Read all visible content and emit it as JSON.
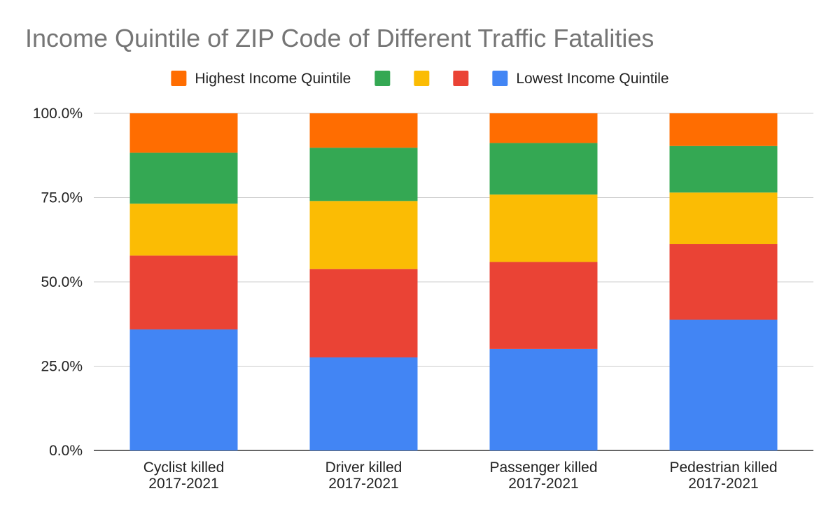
{
  "chart_data": {
    "type": "bar",
    "stacked": true,
    "title": "Income Quintile of ZIP Code of Different Traffic Fatalities",
    "xlabel": "",
    "ylabel": "",
    "ylim": [
      0,
      100
    ],
    "y_tick_labels": [
      "0.0%",
      "25.0%",
      "50.0%",
      "75.0%",
      "100.0%"
    ],
    "y_ticks": [
      0,
      25,
      50,
      75,
      100
    ],
    "grid": true,
    "legend_position": "top",
    "categories": [
      [
        "Cyclist killed",
        "2017-2021"
      ],
      [
        "Driver killed",
        "2017-2021"
      ],
      [
        "Passenger killed",
        "2017-2021"
      ],
      [
        "Pedestrian killed",
        "2017-2021"
      ]
    ],
    "series": [
      {
        "name": "Lowest Income Quintile",
        "color": "#4285f4",
        "values": [
          35.9,
          27.6,
          30.1,
          38.8
        ]
      },
      {
        "color": "#ea4335",
        "values": [
          21.9,
          26.2,
          25.8,
          22.4
        ]
      },
      {
        "color": "#fbbc04",
        "values": [
          15.4,
          20.2,
          20.0,
          15.3
        ]
      },
      {
        "color": "#34a853",
        "values": [
          15.1,
          15.8,
          15.3,
          13.8
        ]
      },
      {
        "name": "Highest Income Quintile",
        "color": "#ff6d01",
        "values": [
          11.7,
          10.2,
          8.8,
          9.7
        ]
      }
    ],
    "legend_order": [
      4,
      3,
      2,
      1,
      0
    ]
  }
}
